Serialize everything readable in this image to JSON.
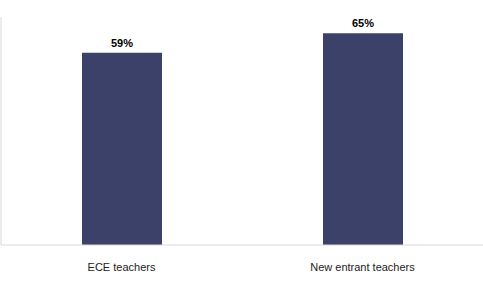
{
  "chart_data": {
    "type": "bar",
    "categories": [
      "ECE teachers",
      "New entrant teachers"
    ],
    "values": [
      59,
      65
    ],
    "value_labels": [
      "59%",
      "65%"
    ],
    "color": "#3b4168",
    "ylim": [
      0,
      70
    ],
    "data_labels": true,
    "tick_labels": "x",
    "grid": false
  }
}
